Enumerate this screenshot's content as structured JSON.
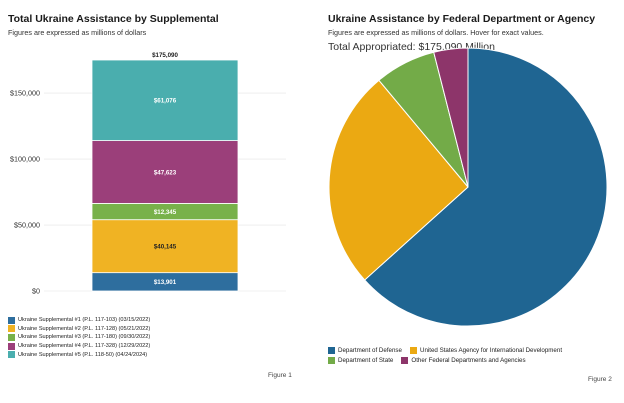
{
  "figure1": {
    "title": "Total Ukraine Assistance by Supplemental",
    "subtitle": "Figures are expressed as millions of dollars",
    "figure_label": "Figure 1"
  },
  "figure2": {
    "title": "Ukraine Assistance by Federal Department or Agency",
    "subtitle": "Figures are expressed as millions of dollars. Hover for exact values.",
    "total_label": "Total Appropriated: $175,090 Million",
    "figure_label": "Figure 2"
  },
  "chart_data": [
    {
      "type": "bar",
      "stacked": true,
      "title": "Total Ukraine Assistance by Supplemental",
      "subtitle": "Figures are expressed as millions of dollars",
      "ylim": [
        0,
        175090
      ],
      "yticks": [
        0,
        50000,
        100000,
        150000
      ],
      "ytick_labels": [
        "$0",
        "$50,000",
        "$100,000",
        "$150,000"
      ],
      "total_label": "$175,090",
      "series": [
        {
          "name": "Ukraine Supplemental #1 (P.L. 117-103) (03/15/2022)",
          "value": 13901,
          "label": "$13,901",
          "color": "#2e6e9e"
        },
        {
          "name": "Ukraine Supplemental #2 (P.L. 117-128) (05/21/2022)",
          "value": 40145,
          "label": "$40,145",
          "color": "#f0b323"
        },
        {
          "name": "Ukraine Supplemental #3 (P.L. 117-180) (09/30/2022)",
          "value": 12345,
          "label": "$12,345",
          "color": "#78b14a"
        },
        {
          "name": "Ukraine Supplemental #4 (P.L. 117-328) (12/29/2022)",
          "value": 47623,
          "label": "$47,623",
          "color": "#9b3f7a"
        },
        {
          "name": "Ukraine Supplemental #5 (P.L. 118-50) (04/24/2024)",
          "value": 61076,
          "label": "$61,076",
          "color": "#4aaeae"
        }
      ]
    },
    {
      "type": "pie",
      "title": "Ukraine Assistance by Federal Department or Agency",
      "total": 175090,
      "slices": [
        {
          "name": "Department of Defense",
          "value": 110900,
          "color": "#1f6592"
        },
        {
          "name": "United States Agency for International Development",
          "value": 44800,
          "color": "#eba912"
        },
        {
          "name": "Department of State",
          "value": 12450,
          "color": "#73ab48"
        },
        {
          "name": "Other Federal Departments and Agencies",
          "value": 6940,
          "color": "#8d356a"
        }
      ]
    }
  ]
}
